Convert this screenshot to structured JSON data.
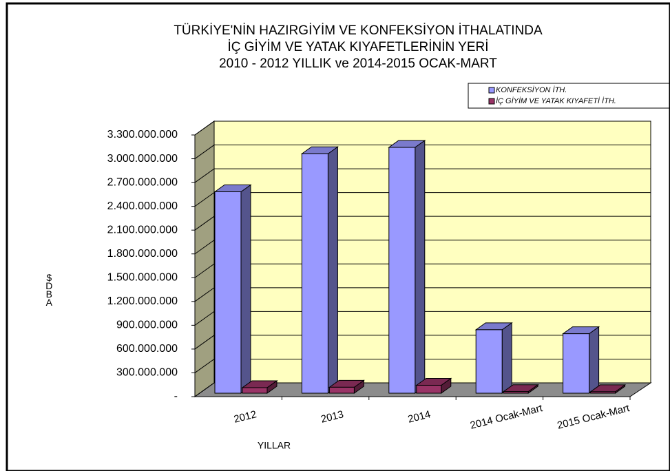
{
  "chart_data": {
    "type": "bar3d",
    "title_lines": [
      "TÜRKİYE'NİN HAZIRGİYİM VE KONFEKSİYON İTHALATINDA",
      "İÇ GİYİM VE YATAK KIYAFETLERİNİN YERİ",
      "2010 - 2012 YILLIK ve 2014-2015 OCAK-MART"
    ],
    "x_label": "YILLAR",
    "y_label": "$DBA",
    "categories": [
      "2012",
      "2013",
      "2014",
      "2014 Ocak-Mart",
      "2015 Ocak-Mart"
    ],
    "series": [
      {
        "name": "KONFEKSİYON İTH.",
        "color": "#9999ff",
        "values": [
          2540000000,
          3020000000,
          3100000000,
          800000000,
          750000000
        ]
      },
      {
        "name": "İÇ GİYİM VE YATAK KIYAFETİ İTH.",
        "color": "#993366",
        "values": [
          70000000,
          75000000,
          100000000,
          20000000,
          18000000
        ]
      }
    ],
    "ylim": [
      0,
      3300000000
    ],
    "yticks": [
      {
        "value": 0,
        "label": "-"
      },
      {
        "value": 300000000,
        "label": "300.000.000"
      },
      {
        "value": 600000000,
        "label": "600.000.000"
      },
      {
        "value": 900000000,
        "label": "900.000.000"
      },
      {
        "value": 1200000000,
        "label": "1.200.000.000"
      },
      {
        "value": 1500000000,
        "label": "1.500.000.000"
      },
      {
        "value": 1800000000,
        "label": "1.800.000.000"
      },
      {
        "value": 2100000000,
        "label": "2.100.000.000"
      },
      {
        "value": 2400000000,
        "label": "2.400.000.000"
      },
      {
        "value": 2700000000,
        "label": "2.700.000.000"
      },
      {
        "value": 3000000000,
        "label": "3.000.000.000"
      },
      {
        "value": 3300000000,
        "label": "3.300.000.000"
      }
    ],
    "grid": true,
    "legend": "top-right"
  }
}
